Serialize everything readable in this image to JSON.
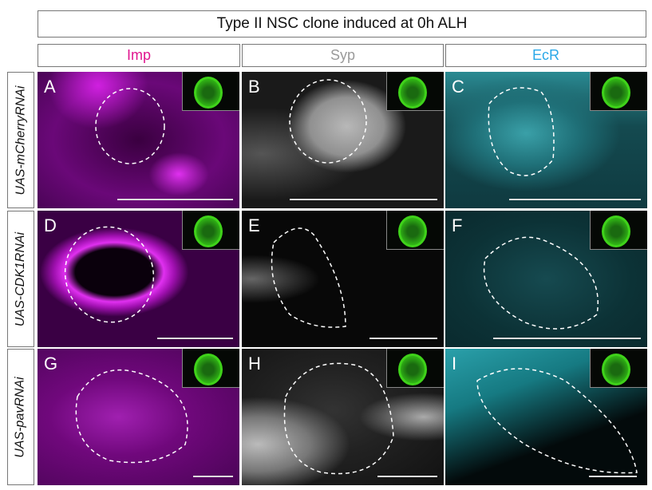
{
  "title": "Type II NSC clone induced at 0h ALH",
  "columns": [
    {
      "label": "Imp",
      "color": "#e0168f"
    },
    {
      "label": "Syp",
      "color": "#9a9a9a"
    },
    {
      "label": "EcR",
      "color": "#2aa8e8"
    }
  ],
  "rows": [
    {
      "label": "UAS-mCherryRNAi",
      "panels": [
        "A",
        "B",
        "C"
      ]
    },
    {
      "label": "UAS-CDK1RNAi",
      "panels": [
        "D",
        "E",
        "F"
      ]
    },
    {
      "label": "UAS-pavRNAi",
      "panels": [
        "G",
        "H",
        "I"
      ]
    }
  ],
  "colors": {
    "imp_stain": "#b000c0",
    "syp_stain": "#c8c8c8",
    "ecr_stain": "#30b8c8",
    "clone_marker": "#3fd21a"
  }
}
